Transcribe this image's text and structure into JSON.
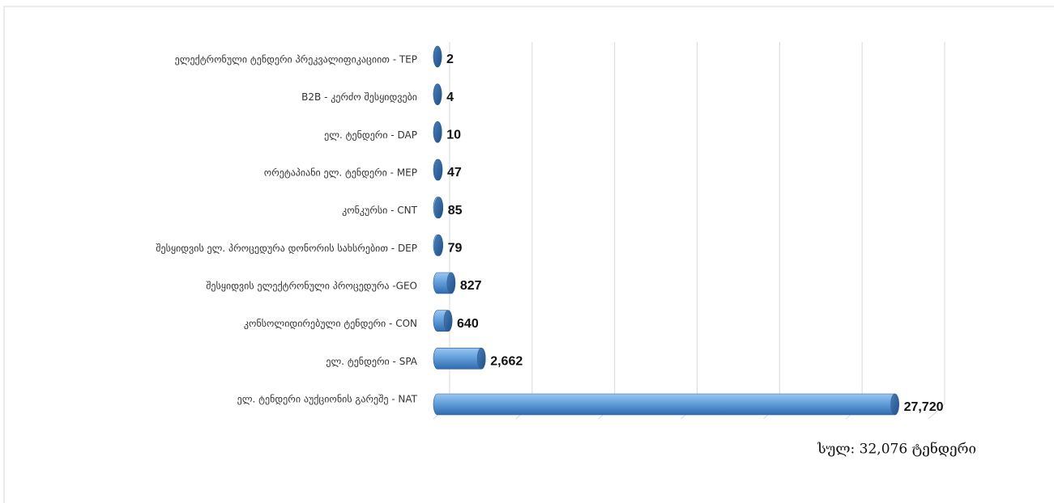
{
  "chart_data": {
    "type": "bar3d",
    "categories": [
      "ელექტრონული ტენდერი პრეკვალიფიკაციით - TEP",
      "B2B - კერძო შესყიდვები",
      "ელ. ტენდერი - DAP",
      "ორეტაპიანი ელ. ტენდერი - MEP",
      "კონკურსი - CNT",
      "შესყიდვის ელ. პროცედურა დონორის სახსრებით - DEP",
      "შესყიდვის ელექტრონული პროცედურა -GEO",
      "კონსოლიდირებული ტენდერი - CON",
      "ელ. ტენდერი - SPA",
      "ელ. ტენდერი აუქციონის გარეშე - NAT"
    ],
    "values": [
      2,
      4,
      10,
      47,
      85,
      79,
      827,
      640,
      2662,
      27720
    ],
    "value_labels": [
      "2",
      "4",
      "10",
      "47",
      "85",
      "79",
      "827",
      "640",
      "2,662",
      "27,720"
    ],
    "color": "#5b9bd5",
    "xlim": [
      0,
      30000
    ],
    "xticks": [
      0,
      5000,
      10000,
      15000,
      20000,
      25000,
      30000
    ],
    "grid": true,
    "annotation": "სულ: 32,076 ტენდერი"
  }
}
